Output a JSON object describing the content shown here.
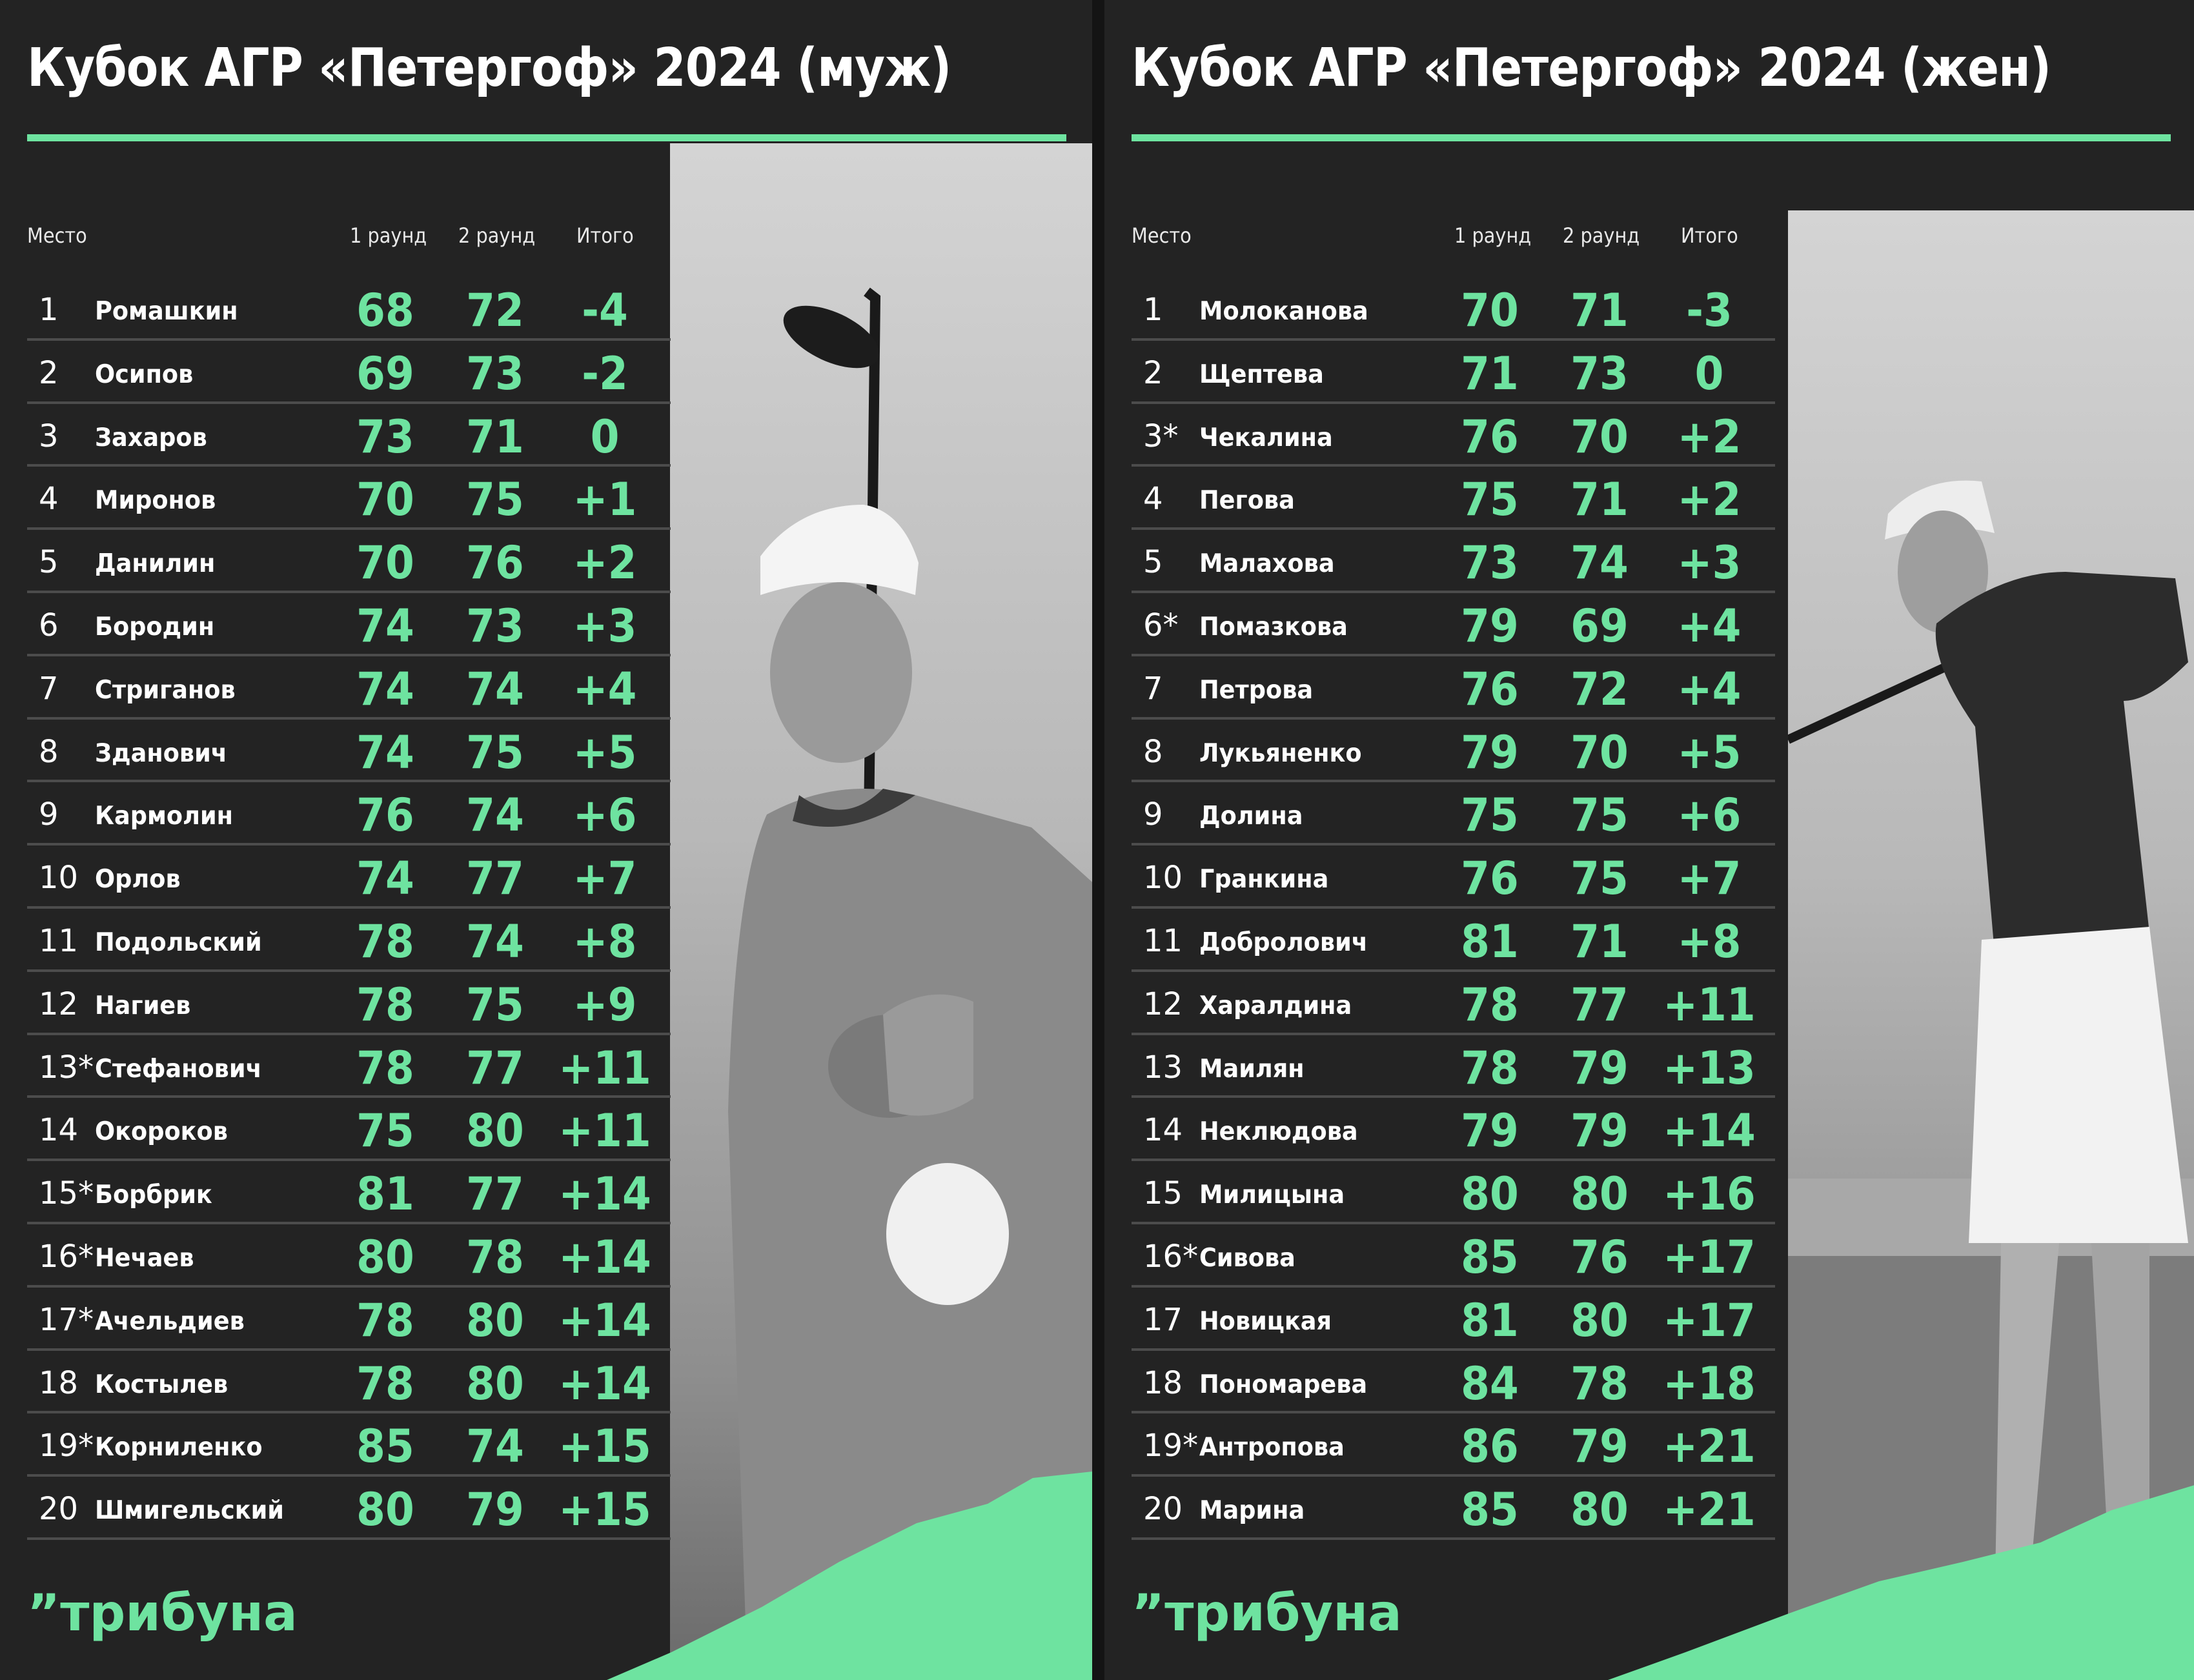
{
  "men": {
    "title": "Кубок АГР «Петергоф» 2024 (муж)",
    "headers": {
      "place": "Место",
      "round1": "1 раунд",
      "round2": "2 раунд",
      "total": "Итого"
    },
    "rows": [
      {
        "place": "1",
        "name": "Ромашкин",
        "r1": "68",
        "r2": "72",
        "total": "-4"
      },
      {
        "place": "2",
        "name": "Осипов",
        "r1": "69",
        "r2": "73",
        "total": "-2"
      },
      {
        "place": "3",
        "name": "Захаров",
        "r1": "73",
        "r2": "71",
        "total": "0"
      },
      {
        "place": "4",
        "name": "Миронов",
        "r1": "70",
        "r2": "75",
        "total": "+1"
      },
      {
        "place": "5",
        "name": "Данилин",
        "r1": "70",
        "r2": "76",
        "total": "+2"
      },
      {
        "place": "6",
        "name": "Бородин",
        "r1": "74",
        "r2": "73",
        "total": "+3"
      },
      {
        "place": "7",
        "name": "Стриганов",
        "r1": "74",
        "r2": "74",
        "total": "+4"
      },
      {
        "place": "8",
        "name": "Зданович",
        "r1": "74",
        "r2": "75",
        "total": "+5"
      },
      {
        "place": "9",
        "name": "Кармолин",
        "r1": "76",
        "r2": "74",
        "total": "+6"
      },
      {
        "place": "10",
        "name": "Орлов",
        "r1": "74",
        "r2": "77",
        "total": "+7"
      },
      {
        "place": "11",
        "name": "Подольский",
        "r1": "78",
        "r2": "74",
        "total": "+8"
      },
      {
        "place": "12",
        "name": "Нагиев",
        "r1": "78",
        "r2": "75",
        "total": "+9"
      },
      {
        "place": "13*",
        "name": "Стефанович",
        "r1": "78",
        "r2": "77",
        "total": "+11"
      },
      {
        "place": "14",
        "name": "Окороков",
        "r1": "75",
        "r2": "80",
        "total": "+11"
      },
      {
        "place": "15*",
        "name": "Борбрик",
        "r1": "81",
        "r2": "77",
        "total": "+14"
      },
      {
        "place": "16*",
        "name": "Нечаев",
        "r1": "80",
        "r2": "78",
        "total": "+14"
      },
      {
        "place": "17*",
        "name": "Ачельдиев",
        "r1": "78",
        "r2": "80",
        "total": "+14"
      },
      {
        "place": "18",
        "name": "Костылев",
        "r1": "78",
        "r2": "80",
        "total": "+14"
      },
      {
        "place": "19*",
        "name": "Корниленко",
        "r1": "85",
        "r2": "74",
        "total": "+15"
      },
      {
        "place": "20",
        "name": "Шмигельский",
        "r1": "80",
        "r2": "79",
        "total": "+15"
      }
    ],
    "logo": "”трибуна"
  },
  "women": {
    "title": "Кубок АГР «Петергоф» 2024 (жен)",
    "headers": {
      "place": "Место",
      "round1": "1 раунд",
      "round2": "2 раунд",
      "total": "Итого"
    },
    "rows": [
      {
        "place": "1",
        "name": "Молоканова",
        "r1": "70",
        "r2": "71",
        "total": "-3"
      },
      {
        "place": "2",
        "name": "Щептева",
        "r1": "71",
        "r2": "73",
        "total": "0"
      },
      {
        "place": "3*",
        "name": "Чекалина",
        "r1": "76",
        "r2": "70",
        "total": "+2"
      },
      {
        "place": "4",
        "name": "Пегова",
        "r1": "75",
        "r2": "71",
        "total": "+2"
      },
      {
        "place": "5",
        "name": "Малахова",
        "r1": "73",
        "r2": "74",
        "total": "+3"
      },
      {
        "place": "6*",
        "name": "Помазкова",
        "r1": "79",
        "r2": "69",
        "total": "+4"
      },
      {
        "place": "7",
        "name": "Петрова",
        "r1": "76",
        "r2": "72",
        "total": "+4"
      },
      {
        "place": "8",
        "name": "Лукьяненко",
        "r1": "79",
        "r2": "70",
        "total": "+5"
      },
      {
        "place": "9",
        "name": "Долина",
        "r1": "75",
        "r2": "75",
        "total": "+6"
      },
      {
        "place": "10",
        "name": "Гранкина",
        "r1": "76",
        "r2": "75",
        "total": "+7"
      },
      {
        "place": "11",
        "name": "Добролович",
        "r1": "81",
        "r2": "71",
        "total": "+8"
      },
      {
        "place": "12",
        "name": "Харалдина",
        "r1": "78",
        "r2": "77",
        "total": "+11"
      },
      {
        "place": "13",
        "name": "Маилян",
        "r1": "78",
        "r2": "79",
        "total": "+13"
      },
      {
        "place": "14",
        "name": "Неклюдова",
        "r1": "79",
        "r2": "79",
        "total": "+14"
      },
      {
        "place": "15",
        "name": "Милицына",
        "r1": "80",
        "r2": "80",
        "total": "+16"
      },
      {
        "place": "16*",
        "name": "Сивова",
        "r1": "85",
        "r2": "76",
        "total": "+17"
      },
      {
        "place": "17",
        "name": "Новицкая",
        "r1": "81",
        "r2": "80",
        "total": "+17"
      },
      {
        "place": "18",
        "name": "Пономарева",
        "r1": "84",
        "r2": "78",
        "total": "+18"
      },
      {
        "place": "19*",
        "name": "Антропова",
        "r1": "86",
        "r2": "79",
        "total": "+21"
      },
      {
        "place": "20",
        "name": "Марина",
        "r1": "85",
        "r2": "80",
        "total": "+21"
      }
    ],
    "logo": "”трибуна"
  },
  "colors": {
    "accent": "#6ee3a0",
    "background": "#232323",
    "divider": "#4c4c4c",
    "text": "#ffffff"
  }
}
